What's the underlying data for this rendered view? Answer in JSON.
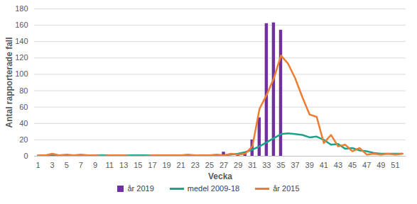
{
  "chart_data": {
    "type": "bar",
    "x_label": "Vecka",
    "y_label": "Antal rapporterade fall",
    "x": [
      1,
      2,
      3,
      4,
      5,
      6,
      7,
      8,
      9,
      10,
      11,
      12,
      13,
      14,
      15,
      16,
      17,
      18,
      19,
      20,
      21,
      22,
      23,
      24,
      25,
      26,
      27,
      28,
      29,
      30,
      31,
      32,
      33,
      34,
      35,
      36,
      37,
      38,
      39,
      40,
      41,
      42,
      43,
      44,
      45,
      46,
      47,
      48,
      49,
      50,
      51,
      52
    ],
    "xlim": [
      0.5,
      52.5
    ],
    "xticks": [
      1,
      3,
      5,
      7,
      9,
      11,
      13,
      15,
      17,
      19,
      21,
      23,
      25,
      27,
      29,
      31,
      33,
      35,
      37,
      39,
      41,
      43,
      45,
      47,
      49,
      51
    ],
    "ylim": [
      0,
      180
    ],
    "yticks": [
      0,
      20,
      40,
      60,
      80,
      100,
      120,
      140,
      160,
      180
    ],
    "grid": true,
    "legend": "bottom",
    "series": [
      {
        "name": "år 2019",
        "type": "bar",
        "color": "#7030a0",
        "values": [
          null,
          null,
          null,
          null,
          null,
          null,
          null,
          null,
          null,
          null,
          null,
          null,
          null,
          null,
          null,
          null,
          null,
          null,
          null,
          null,
          null,
          null,
          null,
          null,
          null,
          null,
          5,
          null,
          3,
          4,
          20,
          47,
          162,
          163,
          154,
          null,
          null,
          null,
          null,
          null,
          null,
          null,
          null,
          null,
          null,
          null,
          null,
          null,
          null,
          null,
          null,
          null
        ]
      },
      {
        "name": "medel 2009-18",
        "type": "line",
        "color": "#1aa58a",
        "values": [
          1,
          1,
          1,
          1,
          1,
          1,
          1,
          1,
          1,
          1,
          1,
          1,
          1,
          1,
          1,
          1,
          1,
          1,
          1,
          1,
          1,
          1,
          1,
          1,
          1,
          1,
          1,
          2,
          3,
          5,
          8,
          12,
          17,
          22,
          27,
          28,
          27,
          26,
          23,
          24,
          20,
          14,
          15,
          9,
          10,
          7,
          6,
          4,
          3,
          3,
          3,
          3
        ]
      },
      {
        "name": "år 2015",
        "type": "line",
        "color": "#ed7d31",
        "values": [
          1,
          1,
          3,
          1,
          2,
          1,
          2,
          1,
          1,
          0,
          1,
          1,
          1,
          0,
          0,
          0,
          1,
          1,
          1,
          1,
          1,
          2,
          1,
          1,
          1,
          2,
          1,
          3,
          2,
          3,
          12,
          58,
          75,
          95,
          123,
          113,
          95,
          72,
          51,
          48,
          16,
          26,
          12,
          14,
          6,
          10,
          2,
          3,
          2,
          3,
          2,
          3
        ]
      }
    ]
  }
}
